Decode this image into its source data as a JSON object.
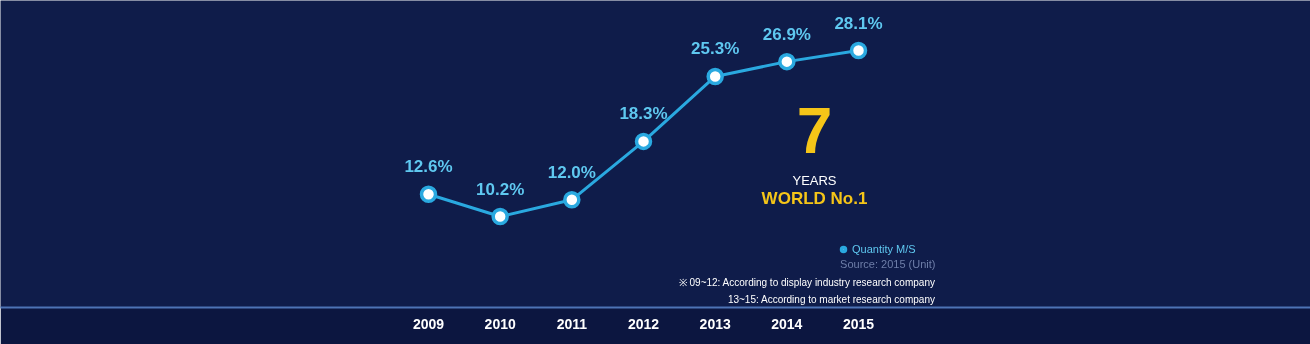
{
  "chart_data": {
    "type": "line",
    "categories": [
      "2009",
      "2010",
      "2011",
      "2012",
      "2013",
      "2014",
      "2015"
    ],
    "series": [
      {
        "name": "Quantity M/S",
        "color": "#2aa9e0",
        "values": [
          12.6,
          10.2,
          12.0,
          18.3,
          25.3,
          26.9,
          28.1
        ],
        "value_labels": [
          "12.6%",
          "10.2%",
          "12.0%",
          "18.3%",
          "25.3%",
          "26.9%",
          "28.1%"
        ]
      }
    ],
    "marker": "circle",
    "legend": "bottom right",
    "grid": false,
    "annotations": [
      "7",
      "YEARS",
      "WORLD No.1",
      "Source: 2015 (Unit)",
      "※ 09~12: According to display industry research company",
      "13~15: According to market research company"
    ]
  }
}
